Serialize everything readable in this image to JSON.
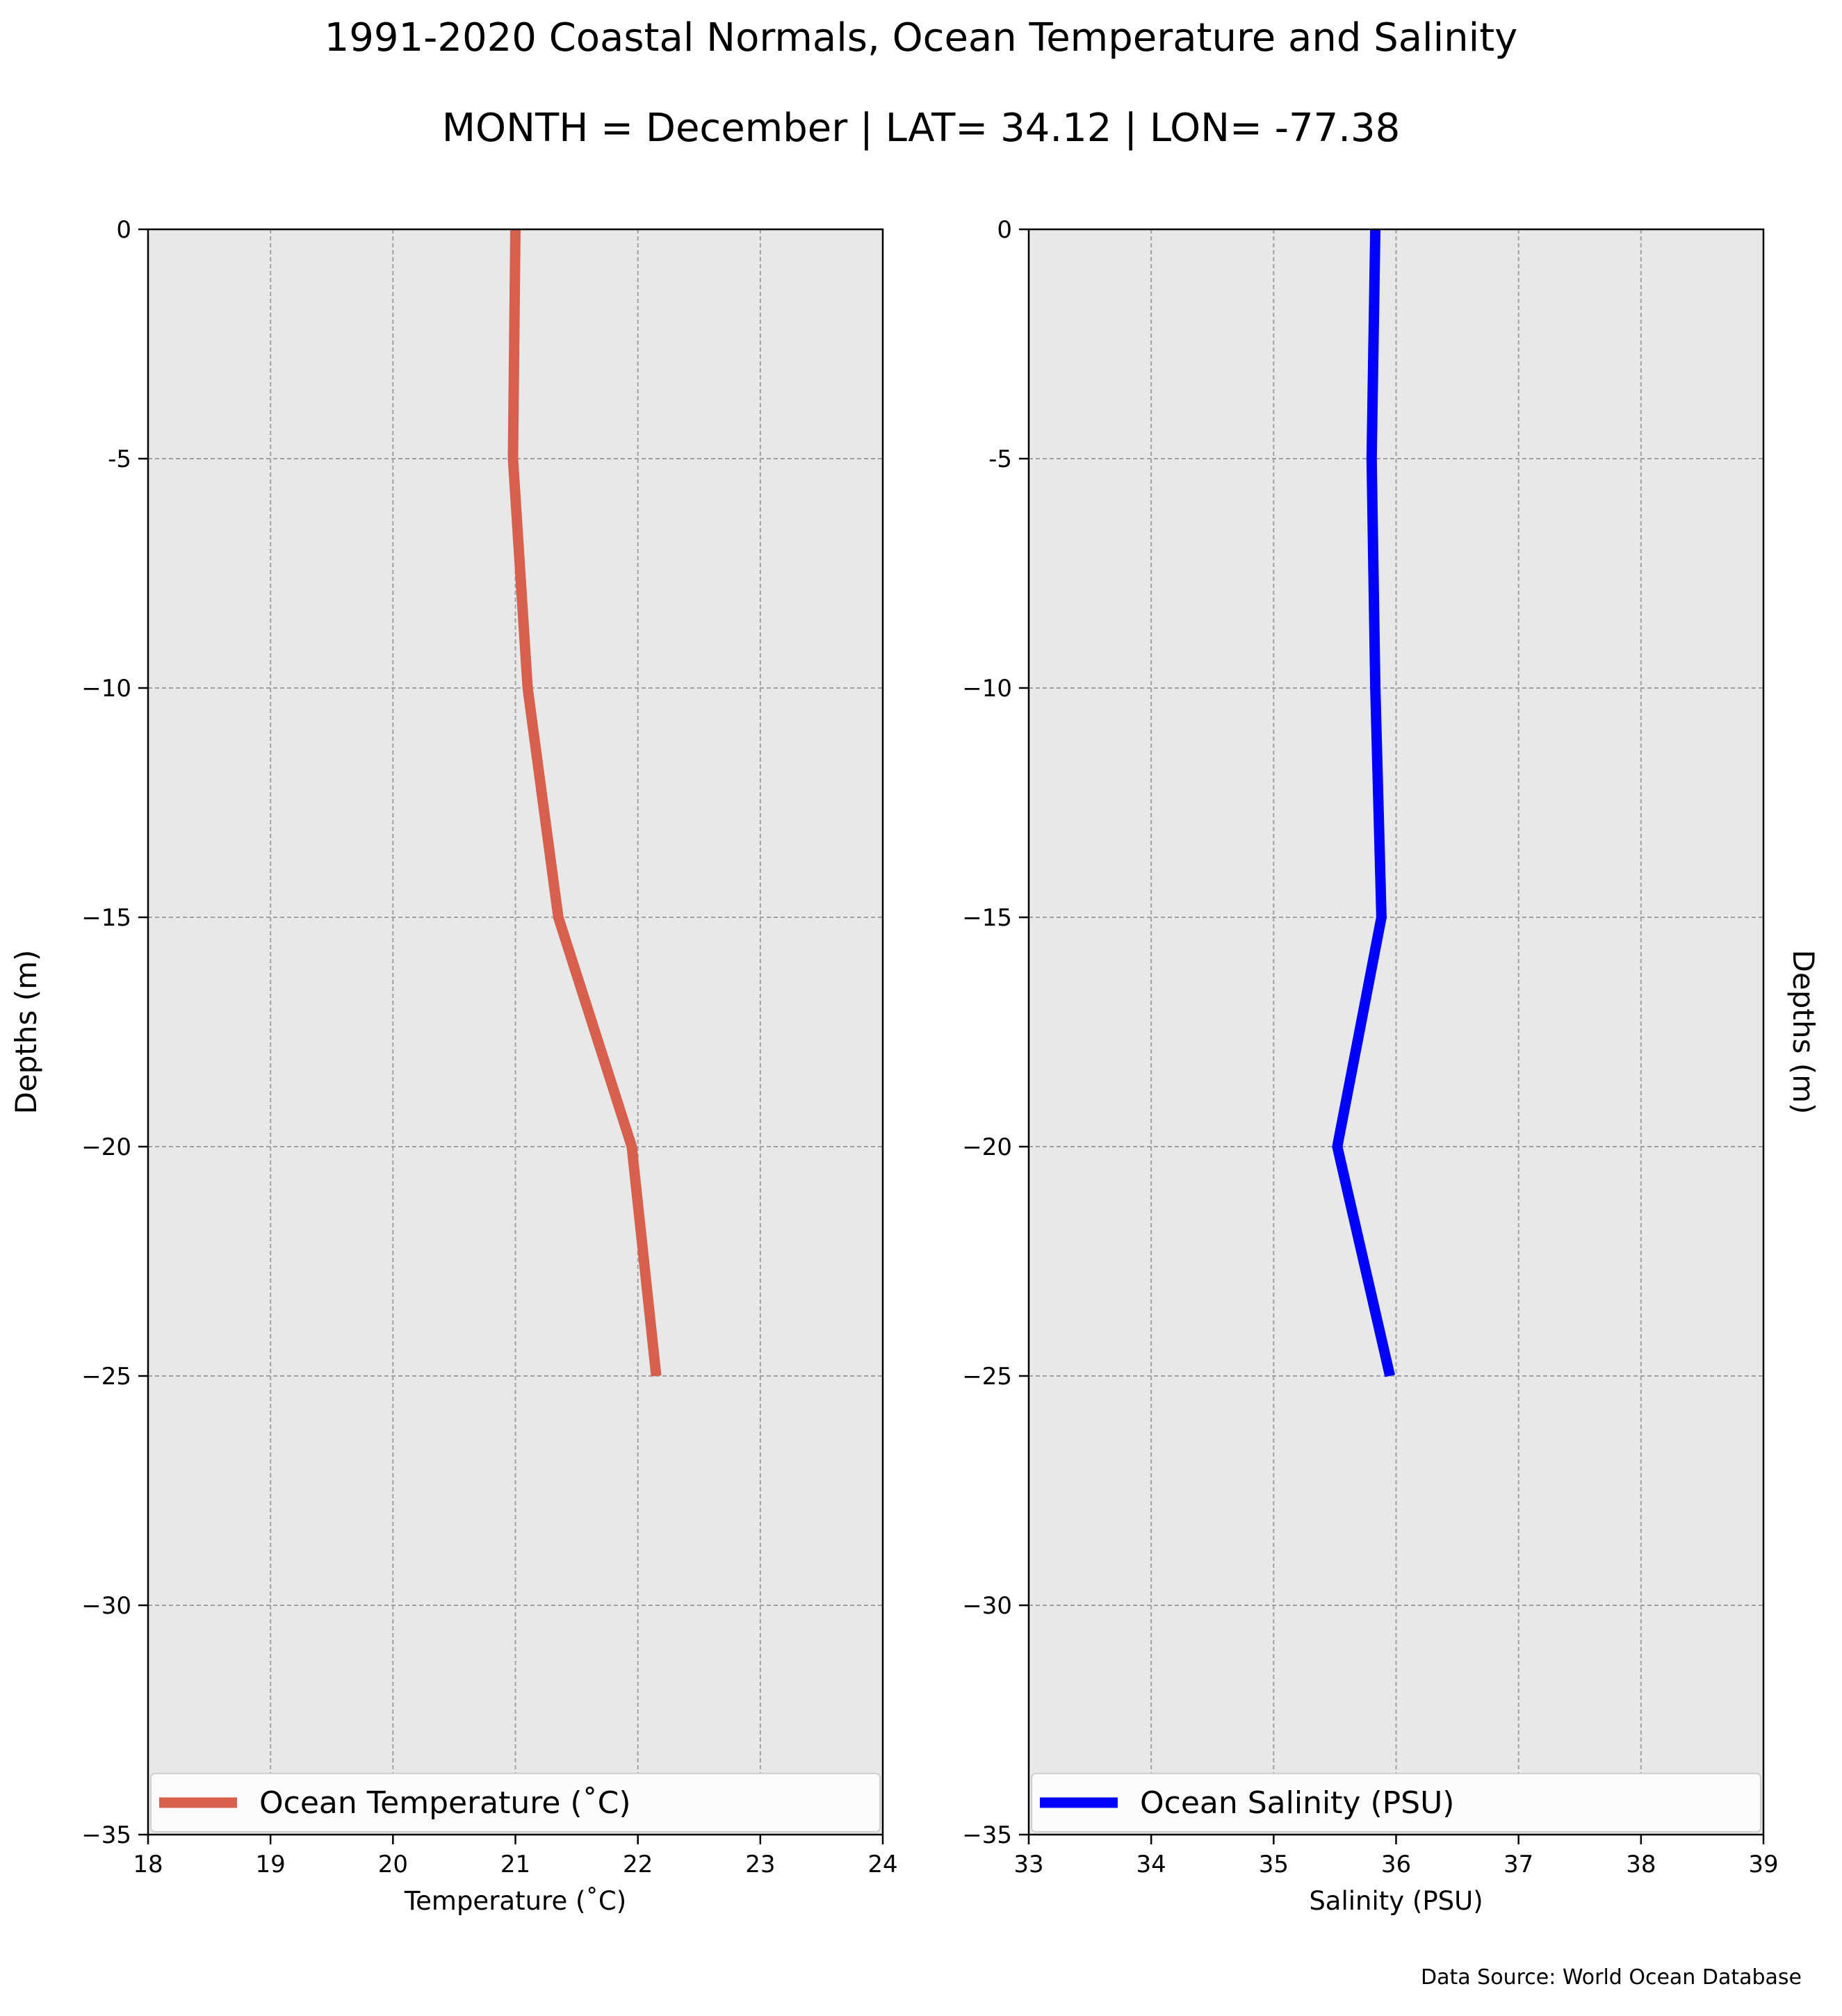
{
  "figure": {
    "title": "1991-2020 Coastal Normals, Ocean Temperature and Salinity",
    "subtitle": "MONTH = December | LAT= 34.12 | LON= -77.38",
    "source_note": "Data Source: World Ocean Database"
  },
  "chart_data": [
    {
      "type": "line",
      "title": "",
      "xlabel": "Temperature (˚C)",
      "ylabel": "Depths (m)",
      "ylabel_side": "left",
      "xlim": [
        18,
        24
      ],
      "ylim": [
        -35,
        0
      ],
      "xticks": [
        18,
        19,
        20,
        21,
        22,
        23,
        24
      ],
      "yticks": [
        0,
        -5,
        -10,
        -15,
        -20,
        -25,
        -30,
        -35
      ],
      "ytick_labels": [
        "0",
        "-5",
        "−10",
        "−15",
        "−20",
        "−25",
        "−30",
        "−35"
      ],
      "grid": true,
      "legend_position": "bottom",
      "series": [
        {
          "name": "Ocean Temperature (˚C)",
          "color": "#d6604d",
          "points": [
            [
              21.0,
              0
            ],
            [
              20.98,
              -5
            ],
            [
              21.1,
              -10
            ],
            [
              21.35,
              -15
            ],
            [
              21.95,
              -20
            ],
            [
              22.15,
              -25
            ]
          ]
        }
      ]
    },
    {
      "type": "line",
      "title": "",
      "xlabel": "Salinity (PSU)",
      "ylabel": "Depths (m)",
      "ylabel_side": "right",
      "xlim": [
        33,
        39
      ],
      "ylim": [
        -35,
        0
      ],
      "xticks": [
        33,
        34,
        35,
        36,
        37,
        38,
        39
      ],
      "yticks": [
        0,
        -5,
        -10,
        -15,
        -20,
        -25,
        -30,
        -35
      ],
      "ytick_labels": [
        "0",
        "-5",
        "−10",
        "−15",
        "−20",
        "−25",
        "−30",
        "−35"
      ],
      "grid": true,
      "legend_position": "bottom",
      "series": [
        {
          "name": "Ocean Salinity (PSU)",
          "color": "#0000ff",
          "points": [
            [
              35.83,
              0
            ],
            [
              35.8,
              -5
            ],
            [
              35.83,
              -10
            ],
            [
              35.88,
              -15
            ],
            [
              35.52,
              -20
            ],
            [
              35.95,
              -25
            ]
          ]
        }
      ]
    }
  ]
}
